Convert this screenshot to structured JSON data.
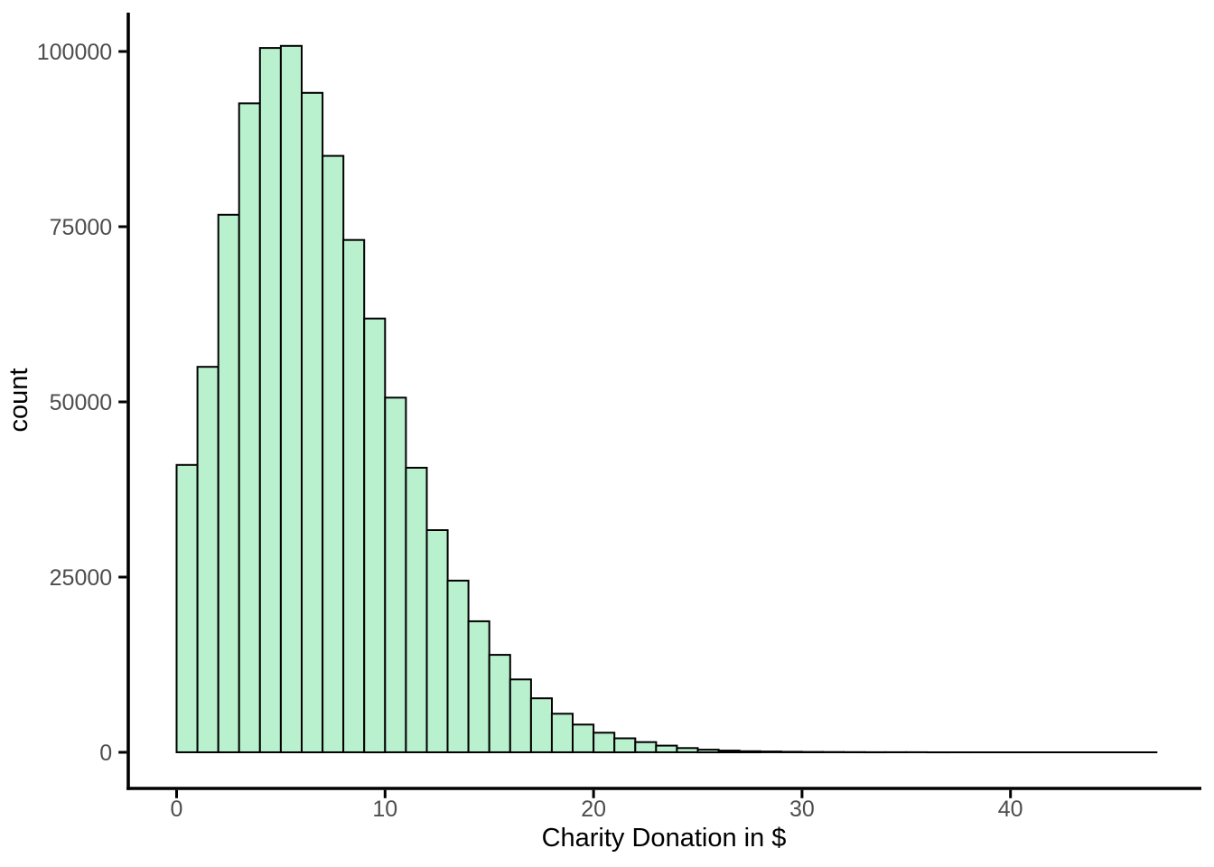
{
  "figure": {
    "background": "#ffffff"
  },
  "chart_data": {
    "type": "bar",
    "subtype": "histogram",
    "title": "",
    "xlabel": "Charity Donation in $",
    "ylabel": "count",
    "bin_start": 0,
    "bin_width": 1,
    "counts": [
      41000,
      55000,
      76700,
      92600,
      100500,
      100800,
      94100,
      85100,
      73100,
      61900,
      50600,
      40600,
      31700,
      24500,
      18700,
      13900,
      10400,
      7700,
      5500,
      3950,
      2800,
      2000,
      1450,
      950,
      600,
      380,
      250,
      160,
      110,
      75,
      50,
      35,
      25,
      18,
      12,
      9,
      6,
      4,
      3,
      2,
      2,
      1,
      1,
      1,
      1,
      1,
      1
    ],
    "x_ticks": [
      0,
      10,
      20,
      30,
      40
    ],
    "y_ticks": [
      0,
      25000,
      50000,
      75000,
      100000
    ],
    "x_tick_labels": [
      "0",
      "10",
      "20",
      "30",
      "40"
    ],
    "y_tick_labels": [
      "0",
      "25000",
      "50000",
      "75000",
      "100000"
    ],
    "xlim": [
      0,
      47
    ],
    "ylim": [
      0,
      105000
    ],
    "grid": false,
    "legend": "none",
    "colors": {
      "bar_fill": "#b9f0cd",
      "bar_stroke": "#000000",
      "axis_line": "#000000",
      "tick_label": "#4d4d4d",
      "axis_title": "#000000",
      "background": "#ffffff"
    }
  }
}
